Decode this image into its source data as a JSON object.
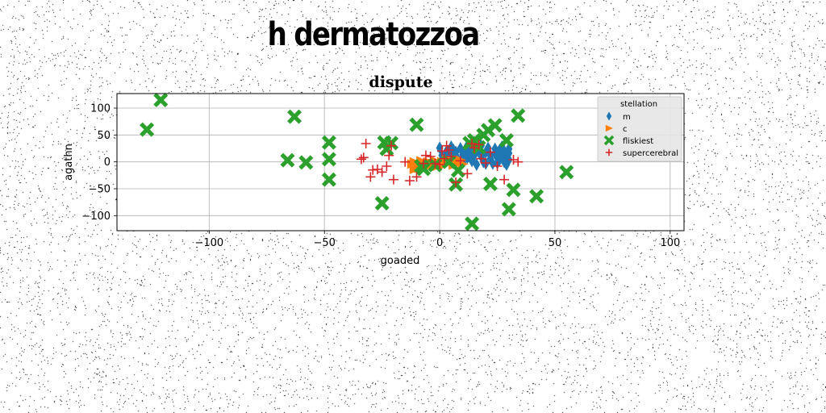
{
  "page": {
    "title": "h dermatozzoa"
  },
  "chart_data": {
    "type": "scatter",
    "title": "dispute",
    "xlabel": "goaded",
    "ylabel": "agathn",
    "xlim": [
      -140,
      106
    ],
    "ylim": [
      -128,
      127
    ],
    "xticks": [
      -100,
      -50,
      0,
      50,
      100
    ],
    "yticks": [
      -100,
      -50,
      0,
      50,
      100
    ],
    "grid": true,
    "legend": {
      "title": "stellation",
      "position": "top-right"
    },
    "series": [
      {
        "name": "m",
        "marker": "diamond",
        "color": "#1f77b4",
        "points": [
          [
            0,
            26
          ],
          [
            1,
            12
          ],
          [
            2,
            8
          ],
          [
            3,
            20
          ],
          [
            4,
            15
          ],
          [
            5,
            28
          ],
          [
            6,
            10
          ],
          [
            6,
            22
          ],
          [
            7,
            18
          ],
          [
            8,
            4
          ],
          [
            9,
            25
          ],
          [
            10,
            14
          ],
          [
            10,
            -1
          ],
          [
            11,
            22
          ],
          [
            12,
            8
          ],
          [
            12,
            30
          ],
          [
            13,
            18
          ],
          [
            14,
            2
          ],
          [
            15,
            26
          ],
          [
            15,
            12
          ],
          [
            16,
            -5
          ],
          [
            17,
            20
          ],
          [
            18,
            10
          ],
          [
            18,
            30
          ],
          [
            19,
            0
          ],
          [
            20,
            18
          ],
          [
            20,
            -3
          ],
          [
            21,
            26
          ],
          [
            22,
            12
          ],
          [
            22,
            6
          ],
          [
            23,
            -3
          ],
          [
            24,
            24
          ],
          [
            24,
            16
          ],
          [
            25,
            8
          ],
          [
            25,
            -2
          ],
          [
            26,
            22
          ],
          [
            26,
            4
          ],
          [
            27,
            14
          ],
          [
            27,
            28
          ],
          [
            28,
            0
          ],
          [
            28,
            20
          ],
          [
            29,
            10
          ],
          [
            29,
            -5
          ],
          [
            30,
            24
          ],
          [
            30,
            16
          ],
          [
            30,
            4
          ]
        ]
      },
      {
        "name": "c",
        "marker": "triangle-right",
        "color": "#ff7f0e",
        "points": [
          [
            -12,
            -4
          ],
          [
            -11,
            -14
          ],
          [
            -11,
            0
          ],
          [
            -10,
            -8
          ],
          [
            -9,
            -12
          ],
          [
            -8,
            2
          ],
          [
            -8,
            -6
          ],
          [
            -7,
            -2
          ],
          [
            -6,
            -10
          ],
          [
            -5,
            0
          ],
          [
            -4,
            -6
          ],
          [
            -3,
            -3
          ],
          [
            -2,
            2
          ],
          [
            -1,
            -8
          ],
          [
            0,
            -4
          ],
          [
            1,
            0
          ],
          [
            2,
            -6
          ],
          [
            3,
            4
          ],
          [
            4,
            -2
          ],
          [
            5,
            2
          ],
          [
            6,
            -6
          ],
          [
            7,
            0
          ],
          [
            8,
            -3
          ],
          [
            9,
            3
          ],
          [
            10,
            -4
          ]
        ]
      },
      {
        "name": "fliskiest",
        "marker": "x-filled",
        "color": "#2ca02c",
        "points": [
          [
            -127,
            60
          ],
          [
            -121,
            115
          ],
          [
            -66,
            3
          ],
          [
            -63,
            84
          ],
          [
            -58,
            -1
          ],
          [
            -48,
            36
          ],
          [
            -48,
            5
          ],
          [
            -48,
            -33
          ],
          [
            -25,
            -77
          ],
          [
            -24,
            36
          ],
          [
            -23,
            24
          ],
          [
            -21,
            35
          ],
          [
            -10,
            69
          ],
          [
            -8,
            -8
          ],
          [
            -7,
            -13
          ],
          [
            -2,
            -6
          ],
          [
            4,
            0
          ],
          [
            7,
            -42
          ],
          [
            8,
            -16
          ],
          [
            13,
            35
          ],
          [
            14,
            -115
          ],
          [
            15,
            40
          ],
          [
            17,
            27
          ],
          [
            19,
            50
          ],
          [
            21,
            59
          ],
          [
            22,
            -41
          ],
          [
            24,
            68
          ],
          [
            29,
            40
          ],
          [
            30,
            -88
          ],
          [
            32,
            -52
          ],
          [
            34,
            86
          ],
          [
            42,
            -64
          ],
          [
            55,
            -19
          ]
        ]
      },
      {
        "name": "supercerebral",
        "marker": "plus",
        "color": "#d62728",
        "points": [
          [
            -34,
            5
          ],
          [
            -33,
            8
          ],
          [
            -32,
            34
          ],
          [
            -30,
            -28
          ],
          [
            -29,
            -15
          ],
          [
            -27,
            -14
          ],
          [
            -25,
            -19
          ],
          [
            -23,
            -8
          ],
          [
            -22,
            12
          ],
          [
            -21,
            30
          ],
          [
            -20,
            -33
          ],
          [
            -15,
            0
          ],
          [
            -13,
            -35
          ],
          [
            -10,
            -28
          ],
          [
            -7,
            -3
          ],
          [
            -6,
            12
          ],
          [
            -4,
            10
          ],
          [
            -2,
            -3
          ],
          [
            0,
            -5
          ],
          [
            1,
            20
          ],
          [
            2,
            6
          ],
          [
            3,
            30
          ],
          [
            4,
            22
          ],
          [
            5,
            10
          ],
          [
            7,
            -38
          ],
          [
            9,
            2
          ],
          [
            12,
            -22
          ],
          [
            14,
            34
          ],
          [
            15,
            26
          ],
          [
            17,
            32
          ],
          [
            18,
            6
          ],
          [
            20,
            -2
          ],
          [
            22,
            18
          ],
          [
            25,
            -8
          ],
          [
            28,
            -33
          ],
          [
            32,
            4
          ],
          [
            34,
            0
          ]
        ]
      }
    ]
  }
}
